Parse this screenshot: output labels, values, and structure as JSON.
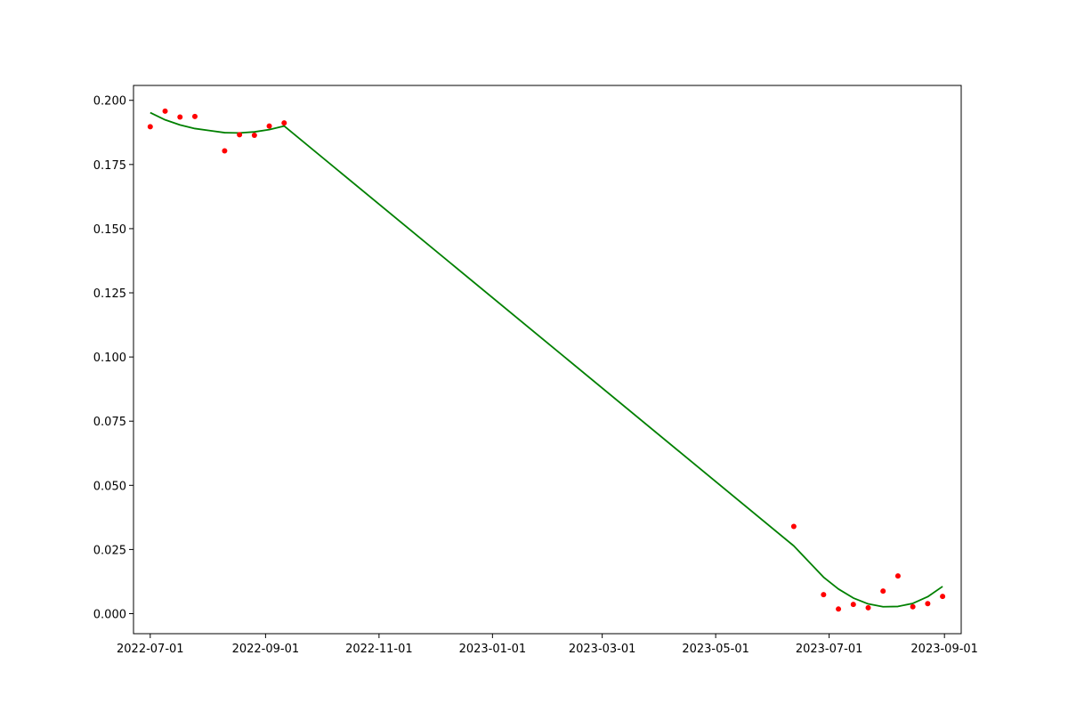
{
  "chart_data": {
    "type": "scatter",
    "title": "",
    "xlabel": "",
    "ylabel": "",
    "x_axis_type": "date",
    "xlim": [
      "2022-06-22",
      "2023-09-10"
    ],
    "ylim": [
      -0.0078,
      0.2058
    ],
    "x_ticks": [
      "2022-07-01",
      "2022-09-01",
      "2022-11-01",
      "2023-01-01",
      "2023-03-01",
      "2023-05-01",
      "2023-07-01",
      "2023-09-01"
    ],
    "x_tick_labels": [
      "2022-07-01",
      "2022-09-01",
      "2022-11-01",
      "2023-01-01",
      "2023-03-01",
      "2023-05-01",
      "2023-07-01",
      "2023-09-01"
    ],
    "y_ticks": [
      0.0,
      0.025,
      0.05,
      0.075,
      0.1,
      0.125,
      0.15,
      0.175,
      0.2
    ],
    "y_tick_labels": [
      "0.000",
      "0.025",
      "0.050",
      "0.075",
      "0.100",
      "0.125",
      "0.150",
      "0.175",
      "0.200"
    ],
    "grid": false,
    "series": [
      {
        "kind": "scatter",
        "color": "#ff0000",
        "points": [
          {
            "x": "2022-07-01",
            "y": 0.1897
          },
          {
            "x": "2022-07-09",
            "y": 0.1958
          },
          {
            "x": "2022-07-17",
            "y": 0.1935
          },
          {
            "x": "2022-07-25",
            "y": 0.1937
          },
          {
            "x": "2022-08-10",
            "y": 0.1803
          },
          {
            "x": "2022-08-18",
            "y": 0.1866
          },
          {
            "x": "2022-08-26",
            "y": 0.1864
          },
          {
            "x": "2022-09-03",
            "y": 0.19
          },
          {
            "x": "2022-09-11",
            "y": 0.1912
          },
          {
            "x": "2023-06-12",
            "y": 0.034
          },
          {
            "x": "2023-06-28",
            "y": 0.0074
          },
          {
            "x": "2023-07-06",
            "y": 0.0018
          },
          {
            "x": "2023-07-14",
            "y": 0.0036
          },
          {
            "x": "2023-07-22",
            "y": 0.0023
          },
          {
            "x": "2023-07-30",
            "y": 0.0088
          },
          {
            "x": "2023-08-07",
            "y": 0.0147
          },
          {
            "x": "2023-08-15",
            "y": 0.0027
          },
          {
            "x": "2023-08-23",
            "y": 0.0039
          },
          {
            "x": "2023-08-31",
            "y": 0.0067
          }
        ]
      },
      {
        "kind": "line",
        "color": "#008000",
        "points": [
          {
            "x": "2022-07-01",
            "y": 0.1952
          },
          {
            "x": "2022-07-09",
            "y": 0.1924
          },
          {
            "x": "2022-07-17",
            "y": 0.1904
          },
          {
            "x": "2022-07-25",
            "y": 0.189
          },
          {
            "x": "2022-08-02",
            "y": 0.1882
          },
          {
            "x": "2022-08-10",
            "y": 0.1874
          },
          {
            "x": "2022-08-18",
            "y": 0.1873
          },
          {
            "x": "2022-08-26",
            "y": 0.1877
          },
          {
            "x": "2022-09-03",
            "y": 0.1886
          },
          {
            "x": "2022-09-11",
            "y": 0.19
          },
          {
            "x": "2023-06-12",
            "y": 0.0264
          },
          {
            "x": "2023-06-28",
            "y": 0.0142
          },
          {
            "x": "2023-07-06",
            "y": 0.0096
          },
          {
            "x": "2023-07-14",
            "y": 0.0061
          },
          {
            "x": "2023-07-22",
            "y": 0.0038
          },
          {
            "x": "2023-07-30",
            "y": 0.0027
          },
          {
            "x": "2023-08-07",
            "y": 0.0028
          },
          {
            "x": "2023-08-15",
            "y": 0.004
          },
          {
            "x": "2023-08-23",
            "y": 0.0066
          },
          {
            "x": "2023-08-31",
            "y": 0.0106
          }
        ]
      }
    ]
  }
}
